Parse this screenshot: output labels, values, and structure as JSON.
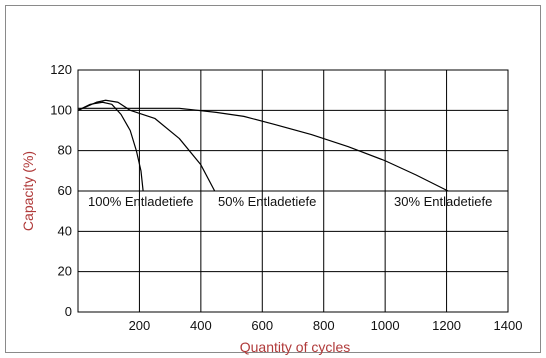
{
  "chart_data": {
    "type": "line",
    "xlabel": "Quantity of cycles",
    "ylabel": "Capacity (%)",
    "xlim": [
      0,
      1400
    ],
    "ylim": [
      0,
      120
    ],
    "x_ticks": [
      200,
      400,
      600,
      800,
      1000,
      1200,
      1400
    ],
    "y_ticks": [
      0,
      20,
      40,
      60,
      80,
      100,
      120
    ],
    "grid": true,
    "axis_title_color": "#b03a3a",
    "line_color": "#000000",
    "series": [
      {
        "name": "100% Entladetiefe",
        "points": [
          [
            0,
            100
          ],
          [
            40,
            103
          ],
          [
            80,
            104
          ],
          [
            110,
            103
          ],
          [
            140,
            98
          ],
          [
            170,
            90
          ],
          [
            190,
            80
          ],
          [
            205,
            70
          ],
          [
            212,
            60
          ]
        ]
      },
      {
        "name": "50% Entladetiefe",
        "points": [
          [
            0,
            100
          ],
          [
            60,
            104
          ],
          [
            90,
            105
          ],
          [
            130,
            104
          ],
          [
            170,
            100
          ],
          [
            250,
            96
          ],
          [
            330,
            86
          ],
          [
            400,
            73
          ],
          [
            445,
            60
          ]
        ]
      },
      {
        "name": "30% Entladetiefe",
        "points": [
          [
            0,
            101
          ],
          [
            100,
            101
          ],
          [
            200,
            101
          ],
          [
            330,
            101
          ],
          [
            450,
            99
          ],
          [
            540,
            97
          ],
          [
            640,
            93
          ],
          [
            760,
            88
          ],
          [
            880,
            82
          ],
          [
            1000,
            75
          ],
          [
            1100,
            68
          ],
          [
            1205,
            60
          ]
        ]
      }
    ]
  }
}
